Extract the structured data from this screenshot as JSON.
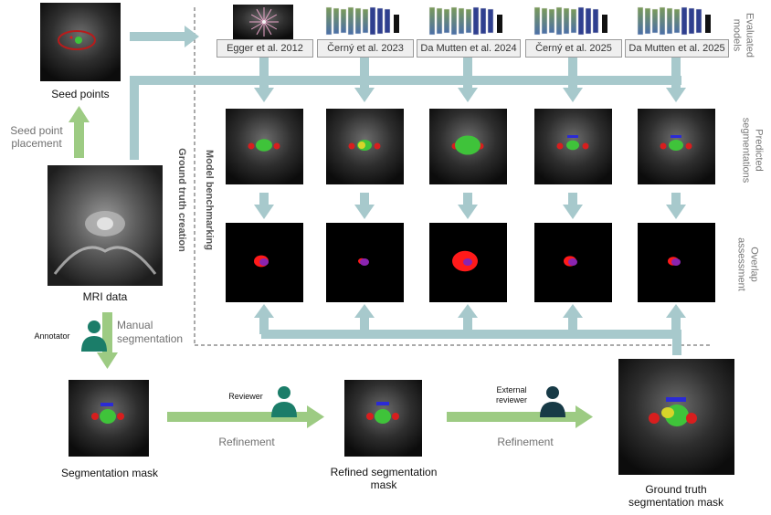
{
  "labels": {
    "seed_points": "Seed points",
    "seed_point_placement_1": "Seed point",
    "seed_point_placement_2": "placement",
    "mri_data": "MRI data",
    "annotator": "Annotator",
    "manual_seg_1": "Manual",
    "manual_seg_2": "segmentation",
    "ground_truth_creation": "Ground truth creation",
    "model_benchmarking": "Model benchmarking",
    "reviewer": "Reviewer",
    "external_reviewer_1": "External",
    "external_reviewer_2": "reviewer",
    "refinement_1": "Refinement",
    "refinement_2": "Refinement",
    "segmentation_mask": "Segmentation mask",
    "refined_mask_1": "Refined segmentation",
    "refined_mask_2": "mask",
    "gt_mask_1": "Ground truth",
    "gt_mask_2": "segmentation mask"
  },
  "row_labels": {
    "evaluated_1": "Evaluated",
    "evaluated_2": "models",
    "predicted_1": "Predicted",
    "predicted_2": "segmentations",
    "overlap_1": "Overlap",
    "overlap_2": "assessment"
  },
  "models": [
    "Egger et al. 2012",
    "Černý et al. 2023",
    "Da Mutten et al. 2024",
    "Černý et al. 2025",
    "Da Mutten et al. 2025"
  ],
  "colors": {
    "teal_arrow": "#a7c9cc",
    "green_arrow": "#9dcb83",
    "person_teal": "#1b7d69",
    "person_dark": "#173a46",
    "seg_green": "#3fc33a",
    "seg_red": "#d81e1e",
    "seg_blue": "#2b2ad6",
    "seg_yellow": "#d6d42a",
    "overlap_red": "#ff1a1a",
    "overlap_purple": "#8a24b0"
  }
}
